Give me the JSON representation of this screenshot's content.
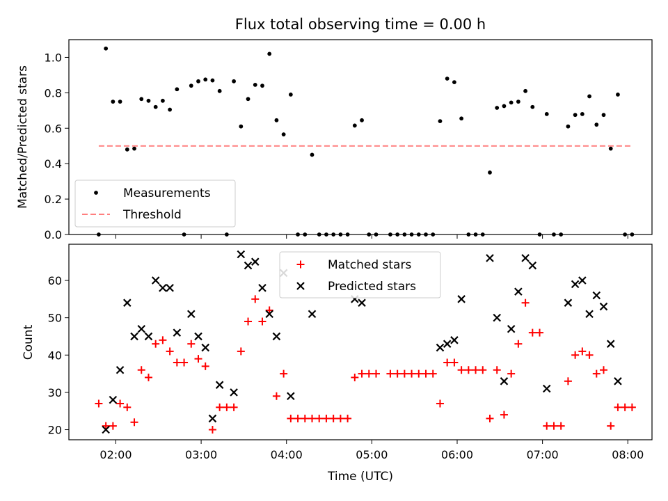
{
  "title": "Flux total observing time = 0.00 h",
  "chart_data": [
    {
      "type": "scatter",
      "ylabel": "Matched/Predicted stars",
      "ylim": [
        0,
        1.1
      ],
      "yticks": [
        "0.0",
        "0.2",
        "0.4",
        "0.6",
        "0.8",
        "1.0"
      ],
      "ytick_values": [
        0,
        0.2,
        0.4,
        0.6,
        0.8,
        1.0
      ],
      "xlim": [
        "01:27",
        "08:17"
      ],
      "legend_position": "lower-left",
      "series": [
        {
          "name": "Measurements",
          "marker": "dot",
          "color": "#000000",
          "points": [
            [
              "01:48",
              0.0
            ],
            [
              "01:53",
              1.05
            ],
            [
              "01:58",
              0.75
            ],
            [
              "02:03",
              0.75
            ],
            [
              "02:08",
              0.48
            ],
            [
              "02:13",
              0.485
            ],
            [
              "02:18",
              0.765
            ],
            [
              "02:23",
              0.755
            ],
            [
              "02:28",
              0.72
            ],
            [
              "02:33",
              0.755
            ],
            [
              "02:38",
              0.705
            ],
            [
              "02:43",
              0.82
            ],
            [
              "02:48",
              0.0
            ],
            [
              "02:53",
              0.84
            ],
            [
              "02:58",
              0.865
            ],
            [
              "03:03",
              0.875
            ],
            [
              "03:08",
              0.87
            ],
            [
              "03:13",
              0.81
            ],
            [
              "03:18",
              0.0
            ],
            [
              "03:23",
              0.865
            ],
            [
              "03:28",
              0.61
            ],
            [
              "03:33",
              0.765
            ],
            [
              "03:38",
              0.845
            ],
            [
              "03:43",
              0.84
            ],
            [
              "03:48",
              1.02
            ],
            [
              "03:53",
              0.645
            ],
            [
              "03:58",
              0.565
            ],
            [
              "04:03",
              0.79
            ],
            [
              "04:08",
              0.0
            ],
            [
              "04:13",
              0.0
            ],
            [
              "04:18",
              0.45
            ],
            [
              "04:23",
              0.0
            ],
            [
              "04:28",
              0.0
            ],
            [
              "04:33",
              0.0
            ],
            [
              "04:38",
              0.0
            ],
            [
              "04:43",
              0.0
            ],
            [
              "04:48",
              0.615
            ],
            [
              "04:53",
              0.645
            ],
            [
              "04:58",
              0.0
            ],
            [
              "05:03",
              0.0
            ],
            [
              "05:13",
              0.0
            ],
            [
              "05:18",
              0.0
            ],
            [
              "05:23",
              0.0
            ],
            [
              "05:28",
              0.0
            ],
            [
              "05:33",
              0.0
            ],
            [
              "05:38",
              0.0
            ],
            [
              "05:43",
              0.0
            ],
            [
              "05:48",
              0.64
            ],
            [
              "05:53",
              0.88
            ],
            [
              "05:58",
              0.86
            ],
            [
              "06:03",
              0.655
            ],
            [
              "06:08",
              0.0
            ],
            [
              "06:13",
              0.0
            ],
            [
              "06:18",
              0.0
            ],
            [
              "06:23",
              0.35
            ],
            [
              "06:28",
              0.715
            ],
            [
              "06:33",
              0.725
            ],
            [
              "06:38",
              0.745
            ],
            [
              "06:43",
              0.75
            ],
            [
              "06:48",
              0.81
            ],
            [
              "06:53",
              0.72
            ],
            [
              "06:58",
              0.0
            ],
            [
              "07:03",
              0.68
            ],
            [
              "07:08",
              0.0
            ],
            [
              "07:13",
              0.0
            ],
            [
              "07:18",
              0.61
            ],
            [
              "07:23",
              0.675
            ],
            [
              "07:28",
              0.68
            ],
            [
              "07:33",
              0.78
            ],
            [
              "07:38",
              0.62
            ],
            [
              "07:43",
              0.675
            ],
            [
              "07:48",
              0.485
            ],
            [
              "07:53",
              0.79
            ],
            [
              "07:58",
              0.0
            ],
            [
              "08:03",
              0.0
            ]
          ]
        },
        {
          "name": "Threshold",
          "marker": "dashed-line",
          "color": "#ff7f7f",
          "points": [
            [
              "01:48",
              0.5
            ],
            [
              "08:03",
              0.5
            ]
          ]
        }
      ]
    },
    {
      "type": "scatter",
      "ylabel": "Count",
      "xlabel": "Time (UTC)",
      "ylim": [
        17.3,
        69.7
      ],
      "yticks": [
        "20",
        "30",
        "40",
        "50",
        "60"
      ],
      "ytick_values": [
        20,
        30,
        40,
        50,
        60
      ],
      "xlim": [
        "01:27",
        "08:17"
      ],
      "xticks": [
        "02:00",
        "03:00",
        "04:00",
        "05:00",
        "06:00",
        "07:00",
        "08:00"
      ],
      "legend_position": "upper-center",
      "series": [
        {
          "name": "Matched stars",
          "marker": "plus",
          "color": "#ff0000",
          "points": [
            [
              "01:48",
              27
            ],
            [
              "01:53",
              21
            ],
            [
              "01:58",
              21
            ],
            [
              "02:03",
              27
            ],
            [
              "02:08",
              26
            ],
            [
              "02:13",
              22
            ],
            [
              "02:18",
              36
            ],
            [
              "02:23",
              34
            ],
            [
              "02:28",
              43
            ],
            [
              "02:33",
              44
            ],
            [
              "02:38",
              41
            ],
            [
              "02:43",
              38
            ],
            [
              "02:48",
              38
            ],
            [
              "02:53",
              43
            ],
            [
              "02:58",
              39
            ],
            [
              "03:03",
              37
            ],
            [
              "03:08",
              20
            ],
            [
              "03:13",
              26
            ],
            [
              "03:18",
              26
            ],
            [
              "03:23",
              26
            ],
            [
              "03:28",
              41
            ],
            [
              "03:33",
              49
            ],
            [
              "03:38",
              55
            ],
            [
              "03:43",
              49
            ],
            [
              "03:48",
              52
            ],
            [
              "03:53",
              29
            ],
            [
              "03:58",
              35
            ],
            [
              "04:03",
              23
            ],
            [
              "04:08",
              23
            ],
            [
              "04:13",
              23
            ],
            [
              "04:18",
              23
            ],
            [
              "04:23",
              23
            ],
            [
              "04:28",
              23
            ],
            [
              "04:33",
              23
            ],
            [
              "04:38",
              23
            ],
            [
              "04:43",
              23
            ],
            [
              "04:48",
              34
            ],
            [
              "04:53",
              35
            ],
            [
              "04:58",
              35
            ],
            [
              "05:03",
              35
            ],
            [
              "05:13",
              35
            ],
            [
              "05:18",
              35
            ],
            [
              "05:23",
              35
            ],
            [
              "05:28",
              35
            ],
            [
              "05:33",
              35
            ],
            [
              "05:38",
              35
            ],
            [
              "05:43",
              35
            ],
            [
              "05:48",
              27
            ],
            [
              "05:53",
              38
            ],
            [
              "05:58",
              38
            ],
            [
              "06:03",
              36
            ],
            [
              "06:08",
              36
            ],
            [
              "06:13",
              36
            ],
            [
              "06:18",
              36
            ],
            [
              "06:23",
              23
            ],
            [
              "06:28",
              36
            ],
            [
              "06:33",
              24
            ],
            [
              "06:38",
              35
            ],
            [
              "06:43",
              43
            ],
            [
              "06:48",
              54
            ],
            [
              "06:53",
              46
            ],
            [
              "06:58",
              46
            ],
            [
              "07:03",
              21
            ],
            [
              "07:08",
              21
            ],
            [
              "07:13",
              21
            ],
            [
              "07:18",
              33
            ],
            [
              "07:23",
              40
            ],
            [
              "07:28",
              41
            ],
            [
              "07:33",
              40
            ],
            [
              "07:38",
              35
            ],
            [
              "07:43",
              36
            ],
            [
              "07:48",
              21
            ],
            [
              "07:53",
              26
            ],
            [
              "07:58",
              26
            ],
            [
              "08:03",
              26
            ]
          ]
        },
        {
          "name": "Predicted stars",
          "marker": "x",
          "color": "#000000",
          "points": [
            [
              "01:53",
              20
            ],
            [
              "01:58",
              28
            ],
            [
              "02:03",
              36
            ],
            [
              "02:08",
              54
            ],
            [
              "02:13",
              45
            ],
            [
              "02:18",
              47
            ],
            [
              "02:23",
              45
            ],
            [
              "02:28",
              60
            ],
            [
              "02:33",
              58
            ],
            [
              "02:38",
              58
            ],
            [
              "02:43",
              46
            ],
            [
              "02:53",
              51
            ],
            [
              "02:58",
              45
            ],
            [
              "03:03",
              42
            ],
            [
              "03:08",
              23
            ],
            [
              "03:13",
              32
            ],
            [
              "03:23",
              30
            ],
            [
              "03:28",
              67
            ],
            [
              "03:33",
              64
            ],
            [
              "03:38",
              65
            ],
            [
              "03:43",
              58
            ],
            [
              "03:48",
              51
            ],
            [
              "03:53",
              45
            ],
            [
              "03:58",
              62
            ],
            [
              "04:03",
              29
            ],
            [
              "04:18",
              51
            ],
            [
              "04:48",
              55
            ],
            [
              "04:53",
              54
            ],
            [
              "05:48",
              42
            ],
            [
              "05:53",
              43
            ],
            [
              "05:58",
              44
            ],
            [
              "06:03",
              55
            ],
            [
              "06:23",
              66
            ],
            [
              "06:28",
              50
            ],
            [
              "06:33",
              33
            ],
            [
              "06:38",
              47
            ],
            [
              "06:43",
              57
            ],
            [
              "06:48",
              66
            ],
            [
              "06:53",
              64
            ],
            [
              "07:03",
              31
            ],
            [
              "07:18",
              54
            ],
            [
              "07:23",
              59
            ],
            [
              "07:28",
              60
            ],
            [
              "07:33",
              51
            ],
            [
              "07:38",
              56
            ],
            [
              "07:43",
              53
            ],
            [
              "07:48",
              43
            ],
            [
              "07:53",
              33
            ]
          ]
        }
      ]
    }
  ]
}
